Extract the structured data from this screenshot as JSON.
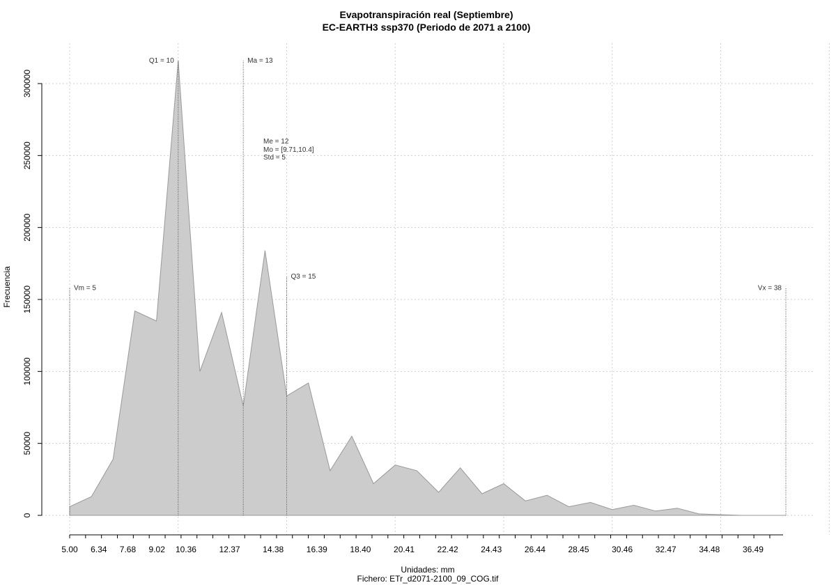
{
  "chart_data": {
    "type": "area",
    "title": "Evapotranspiración real (Septiembre)",
    "subtitle": "EC-EARTH3 ssp370 (Periodo de 2071 a 2100)",
    "xlabel": "Unidades: mm",
    "footer": "Fichero: ETr_d2071-2100_09_COG.tif",
    "ylabel": "Frecuencia",
    "xlim": [
      5,
      38
    ],
    "ylim": [
      0,
      315000
    ],
    "grid": true,
    "fill_color": "#cccccc",
    "line_color": "#999999",
    "x_ticks": [
      "5.00",
      "6.34",
      "7.68",
      "9.02",
      "10.36",
      "12.37",
      "14.38",
      "16.39",
      "18.40",
      "20.41",
      "22.42",
      "24.43",
      "26.44",
      "28.45",
      "30.46",
      "32.47",
      "34.48",
      "36.49"
    ],
    "y_ticks": [
      "0",
      "50000",
      "100000",
      "150000",
      "200000",
      "250000",
      "300000"
    ],
    "x": [
      5.0,
      6.0,
      7.0,
      8.0,
      9.0,
      10.0,
      11.0,
      12.0,
      13.0,
      14.0,
      15.0,
      16.0,
      17.0,
      18.0,
      19.0,
      20.0,
      21.0,
      22.0,
      23.0,
      24.0,
      25.0,
      26.0,
      27.0,
      28.0,
      29.0,
      30.0,
      31.0,
      32.0,
      33.0,
      34.0,
      35.0,
      36.0,
      37.0,
      38.0
    ],
    "values": [
      6000,
      13000,
      39000,
      142000,
      135000,
      316000,
      100000,
      141000,
      76000,
      184000,
      83000,
      92000,
      31000,
      55000,
      22000,
      35000,
      31000,
      16000,
      33000,
      15000,
      22000,
      10000,
      14000,
      6000,
      9000,
      4000,
      7000,
      3000,
      5000,
      1000,
      500,
      0,
      0,
      0
    ],
    "markers": [
      {
        "x": 5,
        "label": "Vm = 5",
        "top": 158000,
        "anchor": "start"
      },
      {
        "x": 10,
        "label": "Q1 = 10",
        "top": 316000,
        "anchor": "end"
      },
      {
        "x": 13,
        "label": "Ma = 13",
        "top": 316000,
        "anchor": "start"
      },
      {
        "x": 15,
        "label": "Q3 = 15",
        "top": 166000,
        "anchor": "start"
      },
      {
        "x": 38,
        "label": "Vx = 38",
        "top": 158000,
        "anchor": "end"
      }
    ],
    "stats": [
      "Me = 12",
      "Mo = [9.71,10.4]",
      "Std = 5"
    ]
  }
}
